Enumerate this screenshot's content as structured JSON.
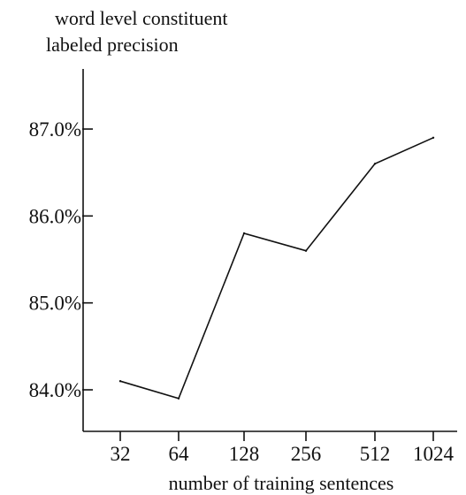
{
  "chart_data": {
    "type": "line",
    "ylabel_lines": [
      "word level constituent",
      "labeled precision"
    ],
    "xlabel": "number of training sentences",
    "categories": [
      "32",
      "64",
      "128",
      "256",
      "512",
      "1024"
    ],
    "series": [
      {
        "values": [
          84.1,
          83.9,
          85.8,
          85.6,
          86.6,
          86.9
        ]
      }
    ],
    "yticks": [
      84.0,
      85.0,
      86.0,
      87.0
    ],
    "ytick_labels": [
      "84.0%",
      "85.0%",
      "86.0%",
      "87.0%"
    ],
    "ylim": [
      83.6,
      87.5
    ],
    "grid": false,
    "legend": "none",
    "colors": {
      "line": "#111111",
      "axis": "#111111",
      "background": "#ffffff"
    }
  }
}
